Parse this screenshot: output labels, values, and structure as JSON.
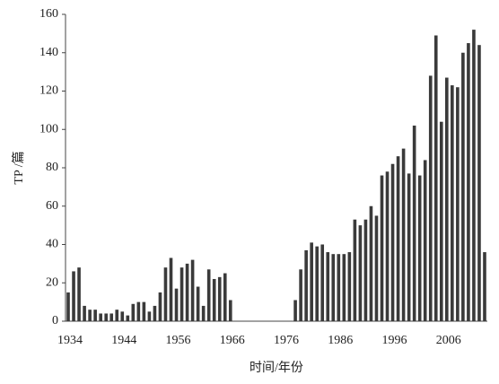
{
  "chart_data": {
    "type": "bar",
    "ylabel": "TP /篇",
    "xlabel": "时间/年份",
    "categories": [
      "1934",
      null,
      null,
      null,
      null,
      null,
      null,
      null,
      null,
      null,
      "1944",
      null,
      null,
      null,
      null,
      null,
      null,
      null,
      null,
      null,
      "1956",
      null,
      null,
      null,
      null,
      null,
      null,
      null,
      null,
      null,
      "1966",
      null,
      null,
      null,
      null,
      null,
      null,
      null,
      null,
      null,
      "1976",
      null,
      null,
      null,
      null,
      null,
      null,
      null,
      null,
      null,
      "1986",
      null,
      null,
      null,
      null,
      null,
      null,
      null,
      null,
      null,
      "1996",
      null,
      null,
      null,
      null,
      null,
      null,
      null,
      null,
      null,
      "2006",
      null,
      null,
      null,
      null,
      null,
      null,
      null
    ],
    "values": [
      15,
      26,
      28,
      8,
      6,
      6,
      4,
      4,
      4,
      6,
      5,
      3,
      9,
      10,
      10,
      5,
      8,
      15,
      28,
      33,
      17,
      28,
      30,
      32,
      18,
      8,
      27,
      22,
      23,
      25,
      11,
      0,
      0,
      0,
      0,
      0,
      0,
      0,
      0,
      0,
      0,
      0,
      11,
      27,
      37,
      41,
      39,
      40,
      36,
      35,
      35,
      35,
      36,
      53,
      50,
      53,
      60,
      55,
      76,
      78,
      82,
      86,
      90,
      77,
      102,
      76,
      84,
      128,
      149,
      104,
      127,
      123,
      122,
      140,
      145,
      152,
      144,
      36
    ],
    "color": "#3a3a3a",
    "ylim": [
      0,
      160
    ],
    "yticks": [
      0,
      20,
      40,
      60,
      80,
      100,
      120,
      140,
      160
    ],
    "grid": false
  }
}
